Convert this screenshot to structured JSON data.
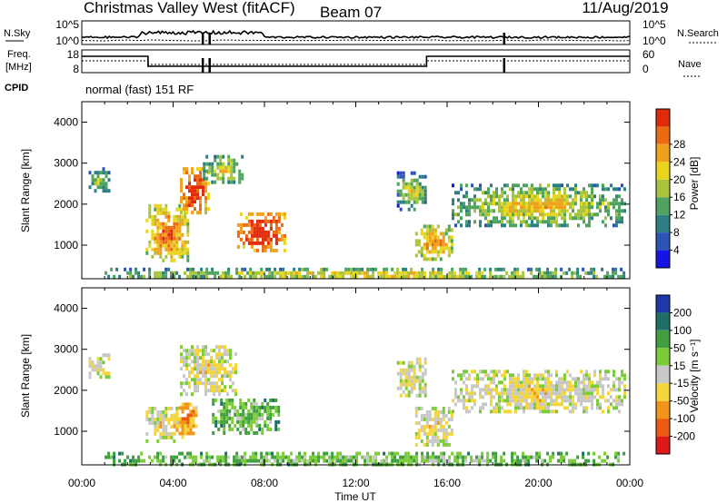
{
  "header": {
    "station": "Christmas Valley West (fitACF)",
    "beam": "Beam 07",
    "date": "11/Aug/2019"
  },
  "panels": {
    "nsky": {
      "left_label": "N.Sky",
      "left_ticks": [
        "10^5",
        "10^0"
      ],
      "right_label": "N.Search",
      "right_ticks": [
        "10^5",
        "10^0"
      ]
    },
    "freq": {
      "left_label_1": "Freq.",
      "left_label_2": "[MHz]",
      "left_ticks": [
        "18",
        "8"
      ],
      "right_label": "Nave",
      "right_ticks": [
        "60",
        "0"
      ]
    },
    "cpid": {
      "label": "CPID",
      "value": "normal (fast) 151 RF"
    }
  },
  "chart_data": [
    {
      "type": "heatmap",
      "quantity": "power",
      "ylabel": "Slant Range [km]",
      "yticks": [
        "1000",
        "2000",
        "3000",
        "4000"
      ],
      "ylim": [
        180,
        4500
      ],
      "xlim": [
        0,
        24
      ],
      "colorbar_label": "Power [dB]",
      "colorbar_ticks": [
        "4",
        "8",
        "12",
        "16",
        "20",
        "24",
        "28"
      ],
      "colorbar_colors": [
        "#1414e6",
        "#2b55b5",
        "#2e7f83",
        "#4ea35f",
        "#a7c43c",
        "#e8d51c",
        "#f0a01a",
        "#ee6a12",
        "#e02a0a"
      ],
      "regions": [
        {
          "t0": 0.3,
          "t1": 1.2,
          "r0": 2300,
          "r1": 2900,
          "level": 0.25
        },
        {
          "t0": 2.8,
          "t1": 4.7,
          "r0": 600,
          "r1": 2000,
          "level": 0.55
        },
        {
          "t0": 4.3,
          "t1": 5.5,
          "r0": 1800,
          "r1": 2900,
          "level": 0.7
        },
        {
          "t0": 5.3,
          "t1": 7.0,
          "r0": 2500,
          "r1": 3200,
          "level": 0.35
        },
        {
          "t0": 6.8,
          "t1": 8.9,
          "r0": 900,
          "r1": 1800,
          "level": 0.75
        },
        {
          "t0": 13.8,
          "t1": 15.0,
          "r0": 1900,
          "r1": 2800,
          "level": 0.3
        },
        {
          "t0": 14.6,
          "t1": 16.2,
          "r0": 700,
          "r1": 1500,
          "level": 0.5
        },
        {
          "t0": 16.2,
          "t1": 23.8,
          "r0": 1500,
          "r1": 2500,
          "level": 0.35
        },
        {
          "t0": 1.0,
          "t1": 23.8,
          "r0": 200,
          "r1": 450,
          "level": 0.35
        }
      ]
    },
    {
      "type": "heatmap",
      "quantity": "velocity",
      "ylabel": "Slant Range [km]",
      "yticks": [
        "1000",
        "2000",
        "3000",
        "4000"
      ],
      "ylim": [
        180,
        4500
      ],
      "xlim": [
        0,
        24
      ],
      "xticks": [
        "00:00",
        "04:00",
        "08:00",
        "12:00",
        "16:00",
        "20:00",
        "00:00"
      ],
      "xlabel": "Time UT",
      "colorbar_label": "Velocity [m s⁻¹]",
      "colorbar_ticks": [
        "200",
        "100",
        "50",
        "15",
        "-15",
        "-50",
        "-100",
        "-200"
      ],
      "colorbar_colors": [
        "#1e3aa8",
        "#1d6f66",
        "#3f9f3f",
        "#7ccc3a",
        "#c8c8c8",
        "#f4d53a",
        "#f2941a",
        "#ec5a10",
        "#e01818"
      ],
      "regions": [
        {
          "t0": 0.3,
          "t1": 1.2,
          "r0": 2300,
          "r1": 2900,
          "level": 0.5
        },
        {
          "t0": 2.8,
          "t1": 4.2,
          "r0": 800,
          "r1": 1600,
          "level": 0.5
        },
        {
          "t0": 4.0,
          "t1": 5.0,
          "r0": 900,
          "r1": 1700,
          "level": 0.65
        },
        {
          "t0": 4.3,
          "t1": 6.8,
          "r0": 1900,
          "r1": 3100,
          "level": 0.5
        },
        {
          "t0": 5.7,
          "t1": 8.6,
          "r0": 1000,
          "r1": 1800,
          "level": 0.32
        },
        {
          "t0": 13.8,
          "t1": 15.0,
          "r0": 1900,
          "r1": 2800,
          "level": 0.5
        },
        {
          "t0": 14.6,
          "t1": 16.2,
          "r0": 700,
          "r1": 1600,
          "level": 0.5
        },
        {
          "t0": 16.2,
          "t1": 23.8,
          "r0": 1500,
          "r1": 2500,
          "level": 0.5
        },
        {
          "t0": 1.0,
          "t1": 23.8,
          "r0": 200,
          "r1": 500,
          "level": 0.33
        }
      ]
    }
  ]
}
